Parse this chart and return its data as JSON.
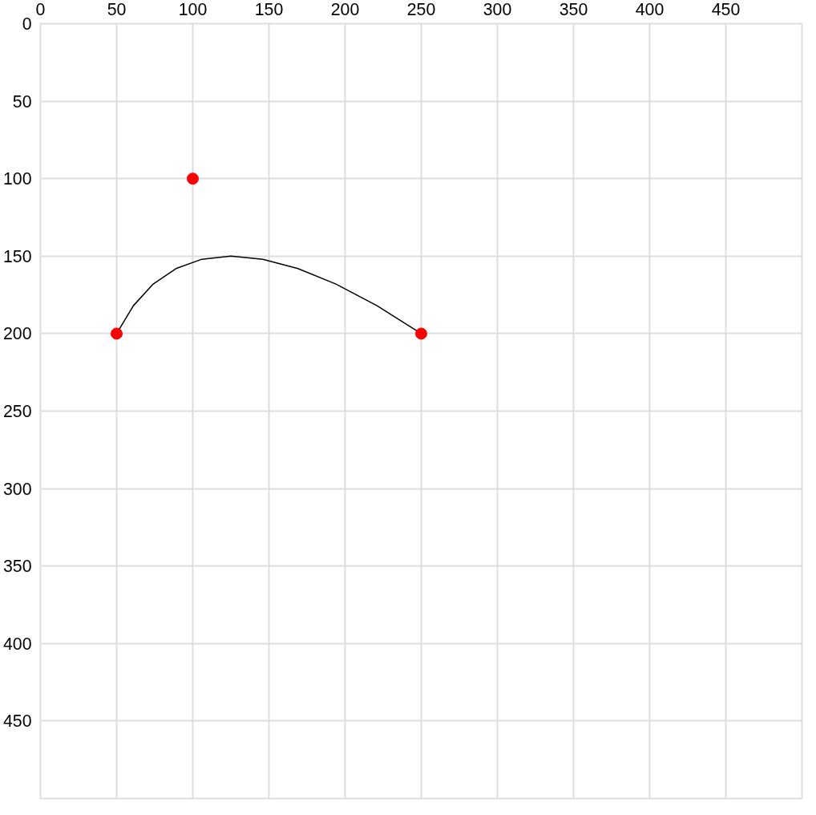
{
  "chart_data": {
    "type": "scatter",
    "xlim": [
      0,
      500
    ],
    "ylim": [
      500,
      0
    ],
    "xticks": [
      0,
      50,
      100,
      150,
      200,
      250,
      300,
      350,
      400,
      450
    ],
    "yticks": [
      0,
      50,
      100,
      150,
      200,
      250,
      300,
      350,
      400,
      450
    ],
    "grid": true,
    "series": [
      {
        "type": "line",
        "color": "#000000",
        "line_style": "solid",
        "marker": "none",
        "x": [
          50,
          61,
          74,
          89,
          106,
          125,
          146,
          169,
          194,
          221,
          250
        ],
        "values": [
          200,
          182,
          168,
          158,
          152,
          150,
          152,
          158,
          168,
          182,
          200
        ]
      },
      {
        "color": "#ff0000",
        "marker": "circle",
        "x": [
          50,
          100,
          250
        ],
        "values": [
          200,
          100,
          200
        ]
      }
    ]
  }
}
